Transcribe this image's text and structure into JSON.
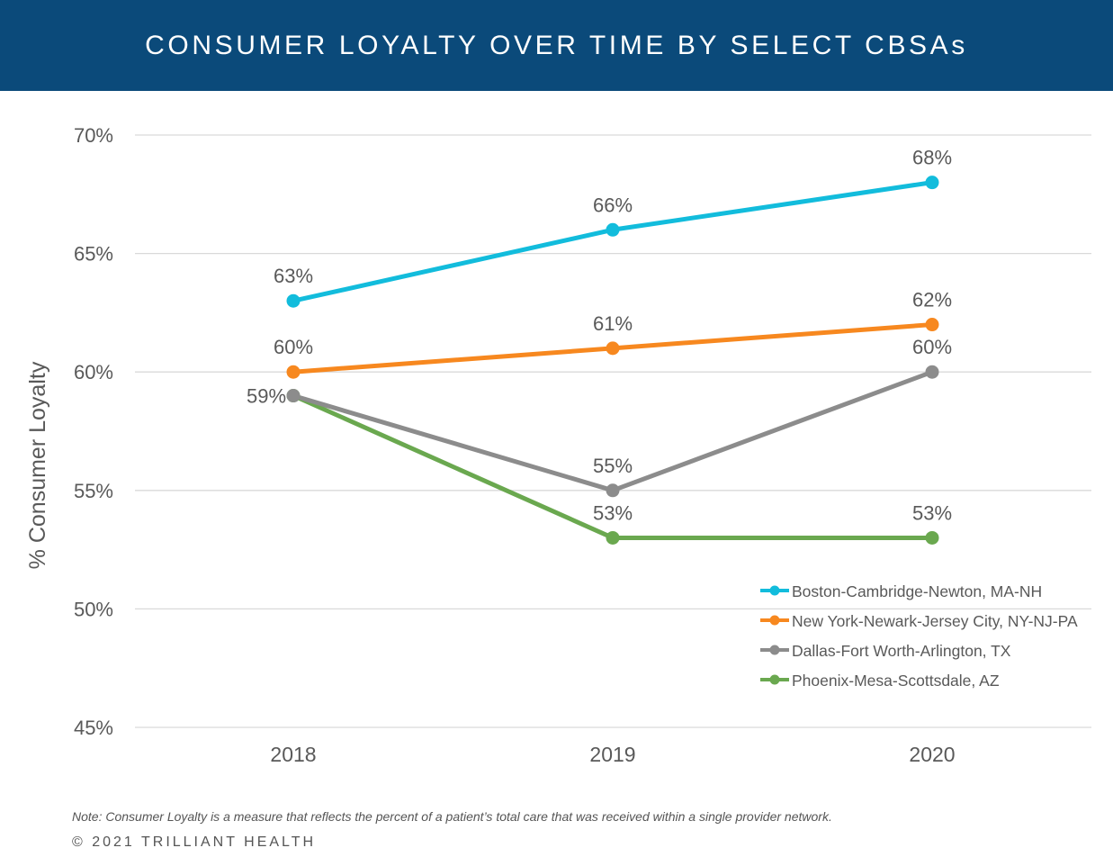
{
  "header": {
    "title": "CONSUMER LOYALTY OVER TIME BY SELECT CBSAs"
  },
  "footer": {
    "note": "Note: Consumer Loyalty is a measure that reflects the percent of a patient’s total care that was received within a single provider network.",
    "copyright": "© 2021 TRILLIANT HEALTH"
  },
  "chart_data": {
    "type": "line",
    "title": "CONSUMER LOYALTY OVER TIME BY SELECT CBSAs",
    "xlabel": "",
    "ylabel": "% Consumer Loyalty",
    "categories": [
      "2018",
      "2019",
      "2020"
    ],
    "ylim": [
      45,
      70
    ],
    "yticks": [
      45,
      50,
      55,
      60,
      65,
      70
    ],
    "ytick_labels": [
      "45%",
      "50%",
      "55%",
      "60%",
      "65%",
      "70%"
    ],
    "grid": true,
    "legend_position": "bottom-right",
    "series": [
      {
        "name": "Boston-Cambridge-Newton, MA-NH",
        "color": "#12bcdc",
        "values": [
          63,
          66,
          68
        ],
        "labels": [
          "63%",
          "66%",
          "68%"
        ]
      },
      {
        "name": "New York-Newark-Jersey City, NY-NJ-PA",
        "color": "#f7881f",
        "values": [
          60,
          61,
          62
        ],
        "labels": [
          "60%",
          "61%",
          "62%"
        ]
      },
      {
        "name": "Dallas-Fort Worth-Arlington, TX",
        "color": "#8c8c8c",
        "values": [
          59,
          55,
          60
        ],
        "labels": [
          "",
          "55%",
          "60%"
        ]
      },
      {
        "name": "Phoenix-Mesa-Scottsdale, AZ",
        "color": "#6aa84f",
        "values": [
          59,
          53,
          53
        ],
        "labels": [
          "59%",
          "53%",
          "53%"
        ]
      }
    ]
  }
}
